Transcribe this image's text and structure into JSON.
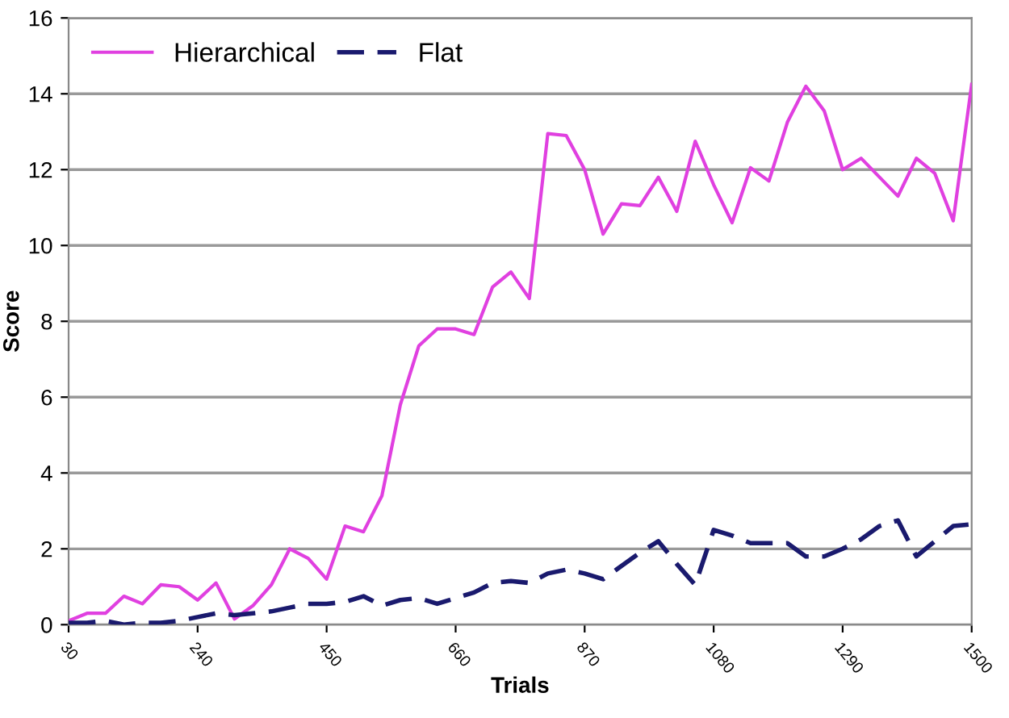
{
  "chart_data": {
    "type": "line",
    "xlabel": "Trials",
    "ylabel": "Score",
    "x": [
      30,
      60,
      90,
      120,
      150,
      180,
      210,
      240,
      270,
      300,
      330,
      360,
      390,
      420,
      450,
      480,
      510,
      540,
      570,
      600,
      630,
      660,
      690,
      720,
      750,
      780,
      810,
      840,
      870,
      900,
      930,
      960,
      990,
      1020,
      1050,
      1080,
      1110,
      1140,
      1170,
      1200,
      1230,
      1260,
      1290,
      1320,
      1350,
      1380,
      1410,
      1440,
      1470,
      1500
    ],
    "series": [
      {
        "name": "Hierarchical",
        "color": "#e040e0",
        "line_style": "solid",
        "values": [
          0.1,
          0.3,
          0.3,
          0.75,
          0.55,
          1.05,
          1.0,
          0.65,
          1.1,
          0.15,
          0.5,
          1.05,
          2.0,
          1.75,
          1.2,
          2.6,
          2.45,
          3.4,
          5.8,
          7.35,
          7.8,
          7.8,
          7.65,
          8.9,
          9.3,
          8.6,
          12.95,
          12.9,
          12.0,
          10.3,
          11.1,
          11.05,
          11.8,
          10.9,
          12.75,
          11.6,
          10.6,
          12.05,
          11.7,
          13.25,
          14.2,
          13.55,
          12.0,
          12.3,
          11.8,
          11.3,
          12.3,
          11.9,
          10.65,
          14.25
        ]
      },
      {
        "name": "Flat",
        "color": "#1a1a6e",
        "line_style": "dashed",
        "values": [
          0.05,
          0.05,
          0.1,
          0.0,
          0.05,
          0.05,
          0.1,
          0.2,
          0.3,
          0.25,
          0.3,
          0.35,
          0.45,
          0.55,
          0.55,
          0.6,
          0.75,
          0.5,
          0.65,
          0.7,
          0.55,
          0.7,
          0.85,
          1.1,
          1.15,
          1.1,
          1.35,
          1.45,
          1.35,
          1.2,
          1.55,
          1.9,
          2.2,
          1.6,
          1.05,
          2.5,
          2.35,
          2.15,
          2.15,
          2.15,
          1.8,
          1.8,
          2.0,
          2.25,
          2.6,
          2.75,
          1.8,
          2.2,
          2.6,
          2.65
        ]
      }
    ],
    "xlim": [
      30,
      1500
    ],
    "xticks": [
      30,
      240,
      450,
      660,
      870,
      1080,
      1290,
      1500
    ],
    "ylim": [
      0,
      16
    ],
    "yticks": [
      0,
      2,
      4,
      6,
      8,
      10,
      12,
      14,
      16
    ],
    "grid": "y",
    "legend": "top left",
    "marker": "none"
  }
}
